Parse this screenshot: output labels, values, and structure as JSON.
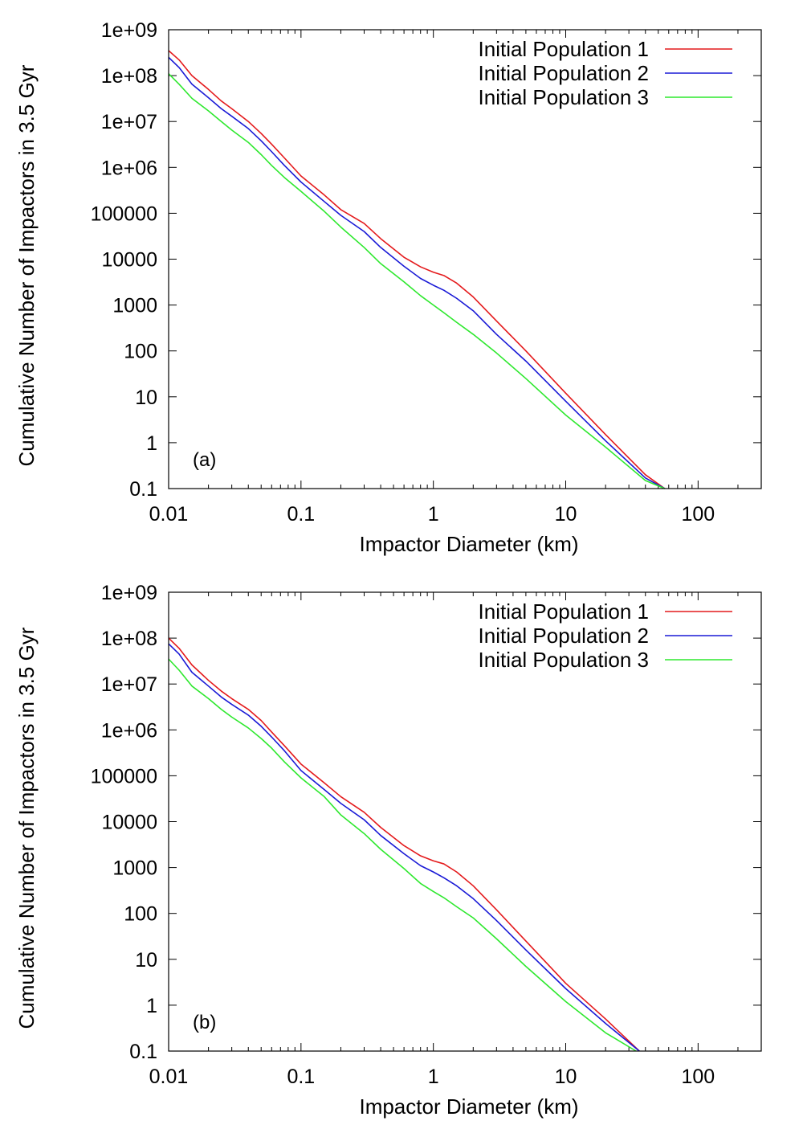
{
  "chart_data": [
    {
      "type": "line",
      "panel_label": "(a)",
      "xlabel": "Impactor Diameter (km)",
      "ylabel": "Cumulative Number of Impactors in 3.5 Gyr",
      "xscale": "log",
      "yscale": "log",
      "xlim": [
        0.01,
        300
      ],
      "ylim": [
        0.1,
        1000000000
      ],
      "x_ticks": [
        {
          "v": 0.01,
          "label": "0.01"
        },
        {
          "v": 0.1,
          "label": "0.1"
        },
        {
          "v": 1,
          "label": "1"
        },
        {
          "v": 10,
          "label": "10"
        },
        {
          "v": 100,
          "label": "100"
        }
      ],
      "y_ticks": [
        {
          "v": 0.1,
          "label": "0.1"
        },
        {
          "v": 1,
          "label": "1"
        },
        {
          "v": 10,
          "label": "10"
        },
        {
          "v": 100,
          "label": "100"
        },
        {
          "v": 1000,
          "label": "1000"
        },
        {
          "v": 10000,
          "label": "10000"
        },
        {
          "v": 100000,
          "label": "100000"
        },
        {
          "v": 1000000,
          "label": "1e+06"
        },
        {
          "v": 10000000,
          "label": "1e+07"
        },
        {
          "v": 100000000,
          "label": "1e+08"
        },
        {
          "v": 1000000000,
          "label": "1e+09"
        }
      ],
      "legend_position": "top-right",
      "grid": false,
      "series": [
        {
          "name": "Initial Population 1",
          "color": "#e41a1c",
          "x": [
            0.01,
            0.012,
            0.015,
            0.02,
            0.025,
            0.03,
            0.04,
            0.05,
            0.06,
            0.075,
            0.1,
            0.15,
            0.2,
            0.3,
            0.4,
            0.6,
            0.8,
            1.0,
            1.2,
            1.5,
            2.0,
            3.0,
            5.0,
            10,
            20,
            40,
            56
          ],
          "y": [
            350000000,
            220000000,
            100000000,
            50000000,
            28000000,
            19000000,
            10000000,
            5500000,
            3200000,
            1600000,
            650000,
            250000,
            120000,
            60000,
            28000,
            11000,
            6800,
            5200,
            4400,
            3000,
            1500,
            450,
            100,
            12,
            1.5,
            0.2,
            0.1
          ]
        },
        {
          "name": "Initial Population 2",
          "color": "#1a1ad6",
          "x": [
            0.01,
            0.012,
            0.015,
            0.02,
            0.025,
            0.03,
            0.04,
            0.05,
            0.06,
            0.075,
            0.1,
            0.15,
            0.2,
            0.3,
            0.4,
            0.6,
            0.8,
            1.0,
            1.2,
            1.5,
            2.0,
            3.0,
            5.0,
            10,
            20,
            40,
            56
          ],
          "y": [
            250000000,
            150000000,
            65000000,
            33000000,
            19000000,
            13000000,
            7000000,
            3800000,
            2200000,
            1100000,
            480000,
            180000,
            90000,
            40000,
            18000,
            7000,
            3800,
            2700,
            2100,
            1400,
            750,
            230,
            60,
            8,
            1.1,
            0.17,
            0.1
          ]
        },
        {
          "name": "Initial Population 3",
          "color": "#2ee82e",
          "x": [
            0.01,
            0.012,
            0.015,
            0.02,
            0.025,
            0.03,
            0.04,
            0.05,
            0.06,
            0.075,
            0.1,
            0.15,
            0.2,
            0.3,
            0.4,
            0.6,
            0.8,
            1.0,
            1.2,
            1.5,
            2.0,
            3.0,
            5.0,
            10,
            20,
            40,
            56
          ],
          "y": [
            110000000,
            65000000,
            32000000,
            17000000,
            10000000,
            6500000,
            3500000,
            1900000,
            1100000,
            600000,
            300000,
            110000,
            50000,
            18000,
            8000,
            3200,
            1600,
            1000,
            680,
            420,
            230,
            90,
            25,
            4,
            0.8,
            0.15,
            0.1
          ]
        }
      ]
    },
    {
      "type": "line",
      "panel_label": "(b)",
      "xlabel": "Impactor Diameter (km)",
      "ylabel": "Cumulative Number of Impactors in 3.5 Gyr",
      "xscale": "log",
      "yscale": "log",
      "xlim": [
        0.01,
        300
      ],
      "ylim": [
        0.1,
        1000000000
      ],
      "x_ticks": [
        {
          "v": 0.01,
          "label": "0.01"
        },
        {
          "v": 0.1,
          "label": "0.1"
        },
        {
          "v": 1,
          "label": "1"
        },
        {
          "v": 10,
          "label": "10"
        },
        {
          "v": 100,
          "label": "100"
        }
      ],
      "y_ticks": [
        {
          "v": 0.1,
          "label": "0.1"
        },
        {
          "v": 1,
          "label": "1"
        },
        {
          "v": 10,
          "label": "10"
        },
        {
          "v": 100,
          "label": "100"
        },
        {
          "v": 1000,
          "label": "1000"
        },
        {
          "v": 10000,
          "label": "10000"
        },
        {
          "v": 100000,
          "label": "100000"
        },
        {
          "v": 1000000,
          "label": "1e+06"
        },
        {
          "v": 10000000,
          "label": "1e+07"
        },
        {
          "v": 100000000,
          "label": "1e+08"
        },
        {
          "v": 1000000000,
          "label": "1e+09"
        }
      ],
      "legend_position": "top-right",
      "grid": false,
      "series": [
        {
          "name": "Initial Population 1",
          "color": "#e41a1c",
          "x": [
            0.01,
            0.012,
            0.015,
            0.02,
            0.025,
            0.03,
            0.04,
            0.05,
            0.06,
            0.075,
            0.1,
            0.15,
            0.2,
            0.3,
            0.4,
            0.6,
            0.8,
            1.0,
            1.2,
            1.5,
            2.0,
            3.0,
            5.0,
            10,
            20,
            36
          ],
          "y": [
            100000000,
            60000000,
            26000000,
            12000000,
            7000000,
            4800000,
            2800000,
            1600000,
            900000,
            450000,
            180000,
            70000,
            35000,
            16000,
            7500,
            3000,
            1800,
            1400,
            1200,
            800,
            400,
            120,
            25,
            3,
            0.5,
            0.1
          ]
        },
        {
          "name": "Initial Population 2",
          "color": "#1a1ad6",
          "x": [
            0.01,
            0.012,
            0.015,
            0.02,
            0.025,
            0.03,
            0.04,
            0.05,
            0.06,
            0.075,
            0.1,
            0.15,
            0.2,
            0.3,
            0.4,
            0.6,
            0.8,
            1.0,
            1.2,
            1.5,
            2.0,
            3.0,
            5.0,
            10,
            20,
            36
          ],
          "y": [
            75000000,
            45000000,
            18000000,
            9000000,
            5200000,
            3600000,
            2100000,
            1200000,
            700000,
            350000,
            130000,
            50000,
            25000,
            11000,
            5000,
            2000,
            1100,
            800,
            600,
            400,
            210,
            70,
            16,
            2.3,
            0.4,
            0.1
          ]
        },
        {
          "name": "Initial Population 3",
          "color": "#2ee82e",
          "x": [
            0.01,
            0.012,
            0.015,
            0.02,
            0.025,
            0.03,
            0.04,
            0.05,
            0.06,
            0.075,
            0.1,
            0.15,
            0.2,
            0.3,
            0.4,
            0.6,
            0.8,
            1.0,
            1.2,
            1.5,
            2.0,
            3.0,
            5.0,
            10,
            20,
            34
          ],
          "y": [
            35000000,
            20000000,
            9000000,
            4800000,
            2800000,
            1900000,
            1100000,
            650000,
            400000,
            200000,
            90000,
            35000,
            14000,
            5500,
            2500,
            950,
            450,
            300,
            220,
            140,
            80,
            28,
            7,
            1.2,
            0.25,
            0.1
          ]
        }
      ]
    }
  ]
}
